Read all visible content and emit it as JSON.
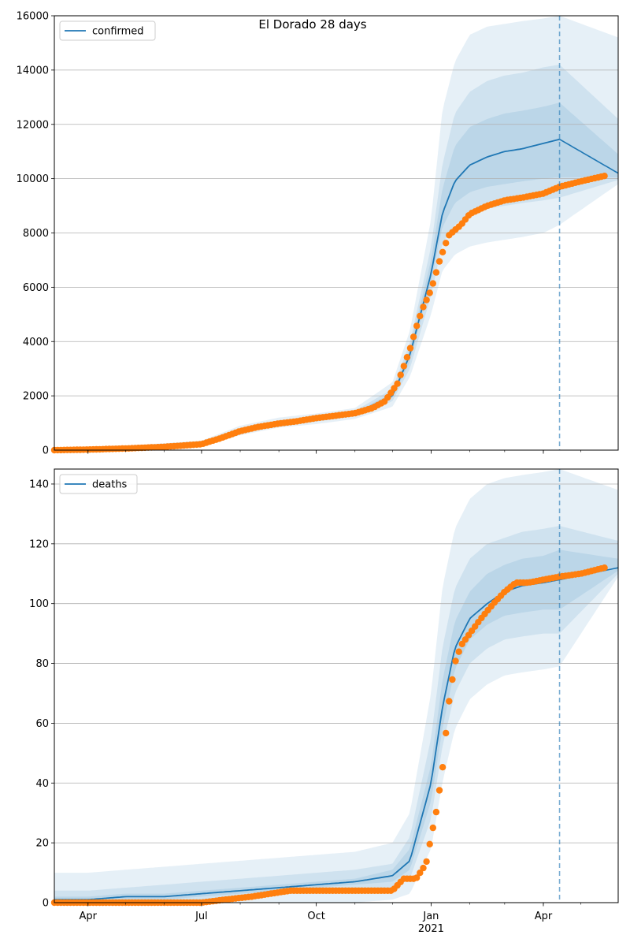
{
  "figure": {
    "title": "El Dorado 28 days"
  },
  "colors": {
    "model_line": "#1f77b4",
    "observed": "#ff7f0e",
    "band": "#1f77b4",
    "grid": "#b0b0b0",
    "vline": "#1f77b4"
  },
  "chart_data": [
    {
      "type": "line",
      "panel": "top",
      "legend": {
        "label": "confirmed",
        "placement": "upper-left"
      },
      "ylim": [
        0,
        16000
      ],
      "yticks": [
        0,
        2000,
        4000,
        6000,
        8000,
        10000,
        12000,
        14000,
        16000
      ],
      "ytick_labels": [
        "0",
        "2000",
        "4000",
        "6000",
        "8000",
        "10000",
        "12000",
        "14000",
        "16000"
      ],
      "xlim": [
        "2020-03-05",
        "2021-05-31"
      ],
      "grid": "horizontal",
      "forecast_start": "2021-04-14",
      "model": {
        "x": [
          "2020-03-05",
          "2020-05-01",
          "2020-07-01",
          "2020-08-01",
          "2020-09-01",
          "2020-10-01",
          "2020-11-01",
          "2020-12-01",
          "2020-12-15",
          "2021-01-01",
          "2021-01-10",
          "2021-01-20",
          "2021-02-01",
          "2021-02-15",
          "2021-03-01",
          "2021-03-15",
          "2021-04-01",
          "2021-04-14",
          "2021-05-31"
        ],
        "y": [
          0,
          100,
          250,
          700,
          1000,
          1150,
          1350,
          2000,
          3500,
          6500,
          8700,
          9900,
          10500,
          10800,
          11000,
          11100,
          11300,
          11450,
          10200
        ]
      },
      "bands": [
        {
          "lower": [
            0,
            40,
            150,
            550,
            830,
            960,
            1150,
            1600,
            2700,
            5000,
            6600,
            7200,
            7500,
            7650,
            7750,
            7850,
            8000,
            8300,
            9800
          ],
          "upper": [
            0,
            160,
            350,
            900,
            1200,
            1350,
            1550,
            2500,
            4400,
            8500,
            12500,
            14300,
            15300,
            15600,
            15700,
            15800,
            15900,
            16000,
            15200
          ]
        },
        {
          "lower": [
            0,
            70,
            210,
            620,
            900,
            1050,
            1250,
            1800,
            3000,
            5700,
            7600,
            8300,
            8700,
            8900,
            9000,
            9100,
            9200,
            9300,
            9950
          ],
          "upper": [
            0,
            130,
            290,
            800,
            1100,
            1250,
            1450,
            2250,
            3950,
            7500,
            10500,
            12400,
            13200,
            13600,
            13800,
            13900,
            14100,
            14200,
            12200
          ]
        },
        {
          "lower": [
            0,
            90,
            240,
            680,
            960,
            1110,
            1310,
            1930,
            3250,
            6200,
            8200,
            9100,
            9500,
            9700,
            9800,
            9900,
            10000,
            10050,
            10050
          ],
          "upper": [
            0,
            115,
            270,
            750,
            1060,
            1200,
            1400,
            2100,
            3750,
            7000,
            9600,
            11200,
            11900,
            12200,
            12400,
            12500,
            12650,
            12800,
            10900
          ]
        }
      ],
      "observed": {
        "x": [
          "2020-03-05",
          "2020-04-01",
          "2020-05-01",
          "2020-06-01",
          "2020-07-01",
          "2020-07-15",
          "2020-08-01",
          "2020-08-15",
          "2020-09-01",
          "2020-09-15",
          "2020-10-01",
          "2020-10-15",
          "2020-11-01",
          "2020-11-15",
          "2020-11-25",
          "2020-12-05",
          "2020-12-15",
          "2020-12-20",
          "2020-12-25",
          "2021-01-01",
          "2021-01-08",
          "2021-01-15",
          "2021-01-25",
          "2021-02-01",
          "2021-02-15",
          "2021-03-01",
          "2021-03-15",
          "2021-04-01",
          "2021-04-14",
          "2021-05-01",
          "2021-05-20"
        ],
        "y": [
          0,
          20,
          60,
          120,
          220,
          420,
          700,
          850,
          980,
          1060,
          1180,
          1260,
          1360,
          1550,
          1800,
          2450,
          3700,
          4500,
          5200,
          5900,
          7000,
          7900,
          8300,
          8700,
          9000,
          9200,
          9300,
          9450,
          9700,
          9900,
          10100
        ]
      }
    },
    {
      "type": "line",
      "panel": "bottom",
      "legend": {
        "label": "deaths",
        "placement": "upper-left"
      },
      "ylim": [
        0,
        145
      ],
      "yticks": [
        0,
        20,
        40,
        60,
        80,
        100,
        120,
        140
      ],
      "ytick_labels": [
        "0",
        "20",
        "40",
        "60",
        "80",
        "100",
        "120",
        "140"
      ],
      "xlim": [
        "2020-03-05",
        "2021-05-31"
      ],
      "xticks": [
        "2020-04-01",
        "2020-07-01",
        "2020-10-01",
        "2021-01-01",
        "2021-04-01"
      ],
      "xtick_labels": [
        "Apr",
        "Jul",
        "Oct",
        "Jan",
        "Apr"
      ],
      "xtick_sublabel": "2021",
      "grid": "horizontal",
      "forecast_start": "2021-04-14",
      "model": {
        "x": [
          "2020-03-05",
          "2020-04-01",
          "2020-05-01",
          "2020-06-01",
          "2020-07-01",
          "2020-08-01",
          "2020-09-01",
          "2020-10-01",
          "2020-11-01",
          "2020-12-01",
          "2020-12-15",
          "2021-01-01",
          "2021-01-10",
          "2021-01-20",
          "2021-02-01",
          "2021-02-15",
          "2021-03-01",
          "2021-03-15",
          "2021-04-01",
          "2021-04-14",
          "2021-05-31"
        ],
        "y": [
          1,
          1,
          2,
          2,
          3,
          4,
          5,
          6,
          7,
          9,
          14,
          40,
          65,
          85,
          95,
          100,
          104,
          106,
          107,
          108,
          112
        ]
      },
      "bands": [
        {
          "lower": [
            0,
            0,
            0,
            0,
            0,
            0,
            0,
            0,
            0,
            1,
            3,
            18,
            40,
            58,
            68,
            73,
            76,
            77,
            78,
            79,
            109
          ],
          "upper": [
            10,
            10,
            11,
            12,
            13,
            14,
            15,
            16,
            17,
            20,
            30,
            70,
            105,
            125,
            135,
            140,
            142,
            143,
            144,
            145,
            138
          ]
        },
        {
          "lower": [
            0,
            0,
            0,
            1,
            1,
            2,
            3,
            3,
            4,
            5,
            8,
            28,
            52,
            70,
            80,
            85,
            88,
            89,
            90,
            90,
            110
          ],
          "upper": [
            4,
            4,
            5,
            6,
            7,
            8,
            9,
            10,
            11,
            13,
            22,
            55,
            85,
            105,
            115,
            120,
            122,
            124,
            125,
            126,
            121
          ]
        },
        {
          "lower": [
            0,
            0,
            1,
            1,
            2,
            3,
            4,
            5,
            6,
            7,
            11,
            34,
            58,
            78,
            88,
            93,
            96,
            97,
            98,
            98,
            111
          ],
          "upper": [
            2,
            2,
            3,
            3,
            4,
            5,
            6,
            7,
            8,
            11,
            18,
            46,
            74,
            94,
            104,
            110,
            113,
            115,
            116,
            118,
            115
          ]
        }
      ],
      "observed": {
        "x": [
          "2020-03-05",
          "2020-07-01",
          "2020-07-20",
          "2020-08-10",
          "2020-09-10",
          "2020-11-01",
          "2020-12-01",
          "2020-12-10",
          "2020-12-20",
          "2020-12-28",
          "2021-01-01",
          "2021-01-05",
          "2021-01-10",
          "2021-01-15",
          "2021-01-20",
          "2021-01-25",
          "2021-02-01",
          "2021-02-10",
          "2021-02-20",
          "2021-03-01",
          "2021-03-10",
          "2021-03-20",
          "2021-04-01",
          "2021-04-14",
          "2021-05-01",
          "2021-05-20"
        ],
        "y": [
          0,
          0,
          1,
          2,
          4,
          4,
          4,
          8,
          8,
          13,
          22,
          30,
          44,
          66,
          80,
          86,
          90,
          95,
          100,
          104,
          107,
          107,
          108,
          109,
          110,
          112
        ]
      }
    }
  ]
}
